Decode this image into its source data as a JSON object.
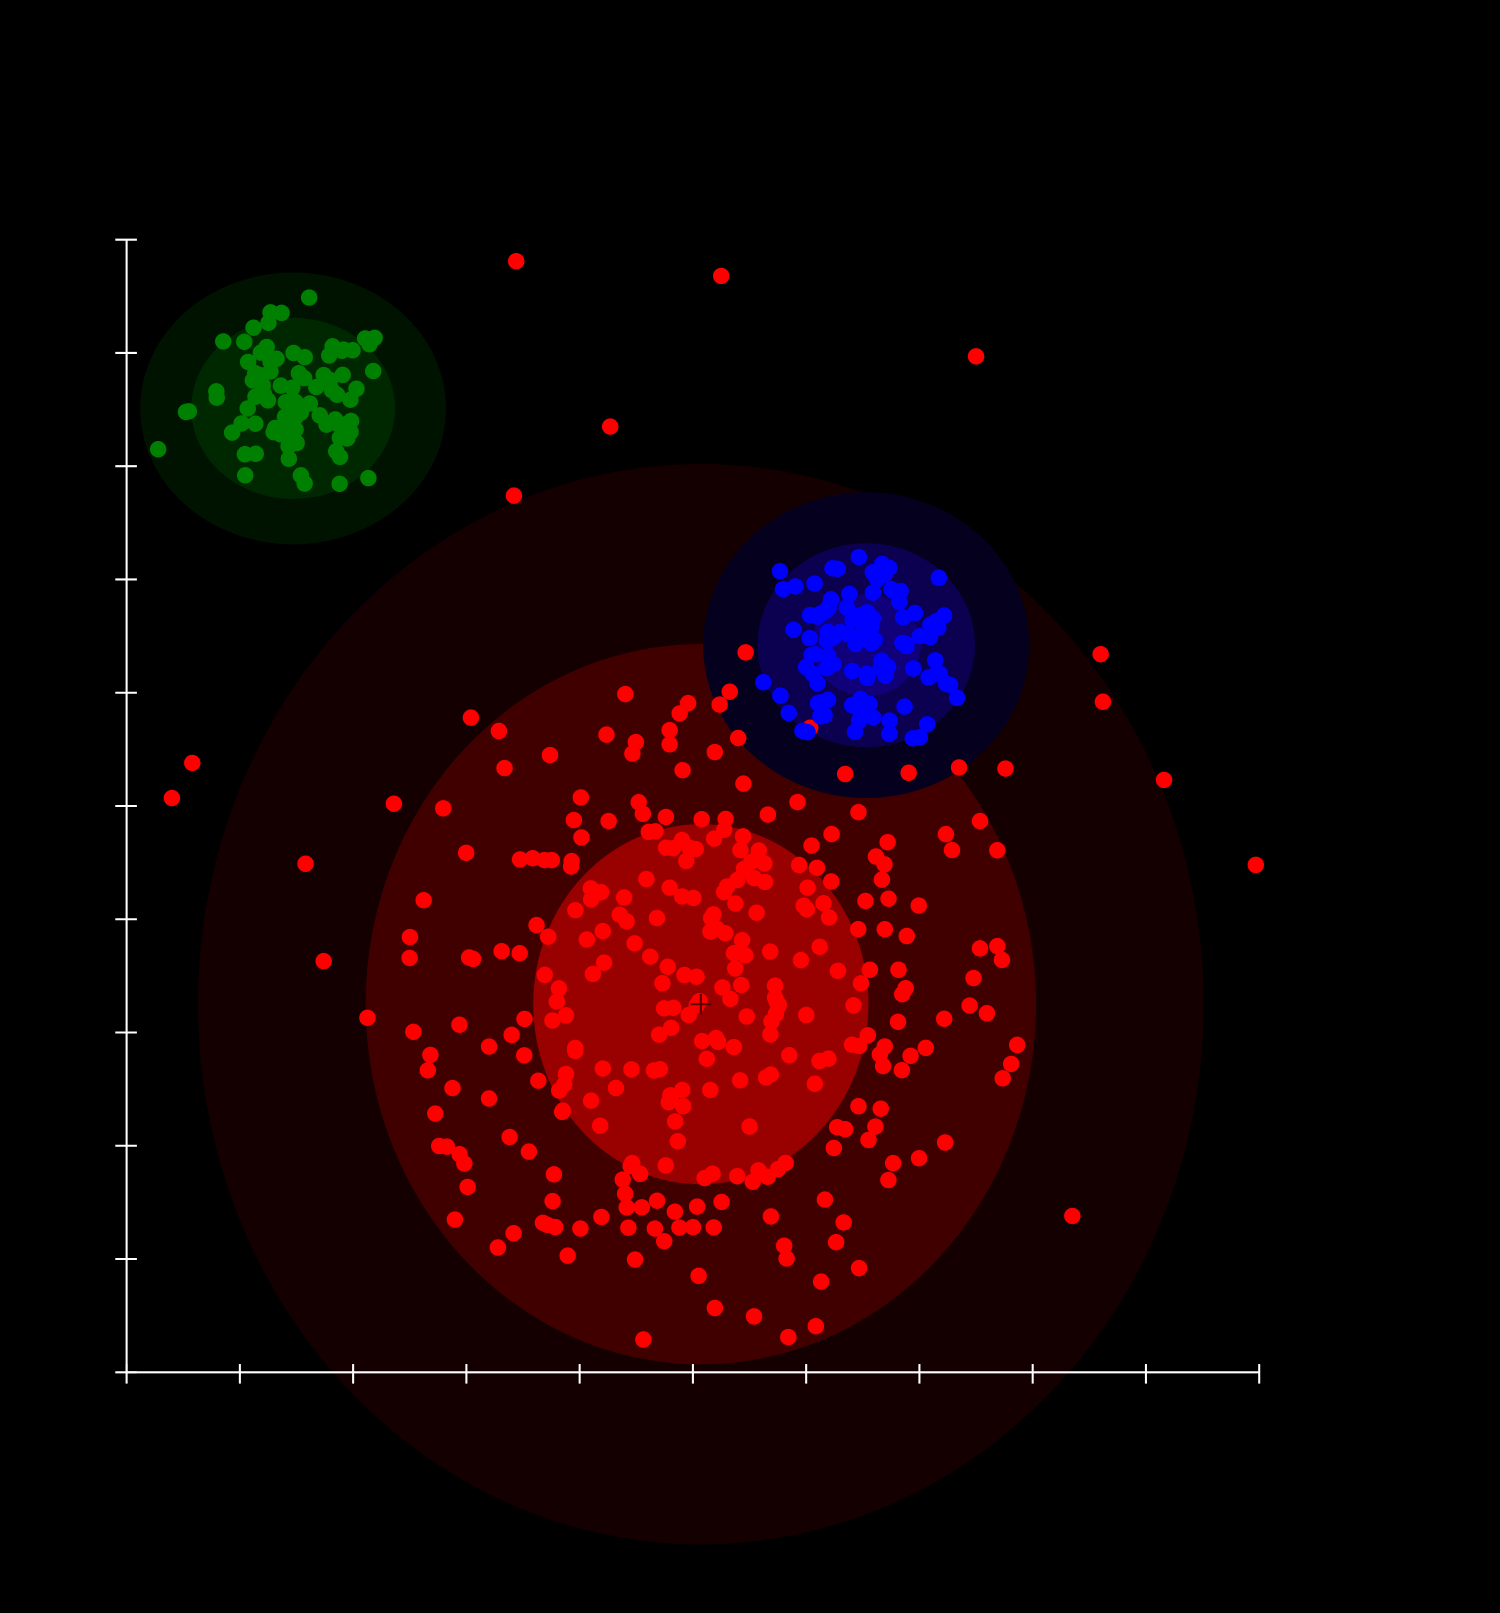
{
  "chart_data": {
    "type": "scatter",
    "title": "",
    "xlabel": "",
    "ylabel": "",
    "xlim": [
      0,
      10
    ],
    "ylim": [
      0,
      10
    ],
    "x_ticks": [
      0,
      1,
      2,
      3,
      4,
      5,
      6,
      7,
      8,
      9,
      10
    ],
    "y_ticks": [
      0,
      1,
      2,
      3,
      4,
      5,
      6,
      7,
      8,
      9,
      10
    ],
    "tick_labels_shown": false,
    "grid": false,
    "legend": "none",
    "background": "#000000",
    "axis_color": "#ffffff",
    "clusters": [
      {
        "color": "#ff0000",
        "ellipse_colors": [
          "#140000",
          "#400000",
          "#990000"
        ],
        "center": [
          5.07,
          3.25
        ],
        "sigma": [
          1.48,
          1.59
        ],
        "sigma_levels": [
          3,
          2,
          1
        ],
        "approx_count": 300,
        "max_sigma": 2.0,
        "center_marker": "cross"
      },
      {
        "color": "#008000",
        "ellipse_colors": [
          "#001200",
          "#002800"
        ],
        "center": [
          1.47,
          8.51
        ],
        "sigma": [
          0.45,
          0.4
        ],
        "sigma_levels": [
          3,
          2
        ],
        "approx_count": 90,
        "max_sigma": 3.0
      },
      {
        "color": "#0000ff",
        "ellipse_colors": [
          "#05001e",
          "#0c0050",
          "#10007a"
        ],
        "center": [
          6.53,
          6.42
        ],
        "sigma": [
          0.48,
          0.45
        ],
        "sigma_levels": [
          3,
          2,
          1
        ],
        "approx_count": 110,
        "max_sigma": 2.2
      }
    ],
    "outliers": {
      "color": "#ff0000",
      "points": [
        [
          3.44,
          9.81
        ],
        [
          5.25,
          9.68
        ],
        [
          7.5,
          8.97
        ],
        [
          4.27,
          8.35
        ],
        [
          3.42,
          7.74
        ],
        [
          8.6,
          6.34
        ],
        [
          8.62,
          5.92
        ],
        [
          9.16,
          5.23
        ],
        [
          9.97,
          4.48
        ],
        [
          0.58,
          5.38
        ],
        [
          0.4,
          5.07
        ],
        [
          1.58,
          4.49
        ],
        [
          1.74,
          3.63
        ],
        [
          3.04,
          5.78
        ],
        [
          2.36,
          5.02
        ],
        [
          8.35,
          1.38
        ],
        [
          7.76,
          5.33
        ],
        [
          5.4,
          5.6
        ],
        [
          7.35,
          5.34
        ]
      ]
    }
  }
}
